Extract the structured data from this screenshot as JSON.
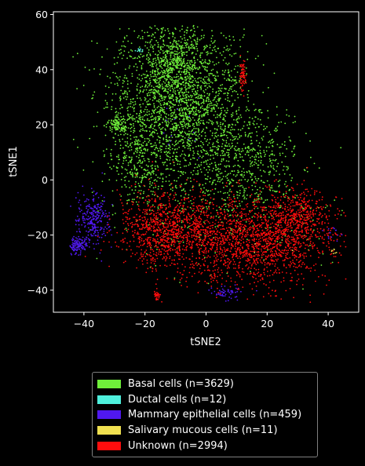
{
  "chart_data": {
    "type": "scatter",
    "title": "",
    "xlabel": "tSNE2",
    "ylabel": "tSNE1",
    "xlim": [
      -50,
      50
    ],
    "ylim": [
      -48,
      61
    ],
    "xticks": [
      -40,
      -20,
      0,
      20,
      40
    ],
    "yticks": [
      -40,
      -20,
      0,
      20,
      40,
      60
    ],
    "xtick_labels": [
      "−40",
      "−20",
      "0",
      "20",
      "40"
    ],
    "ytick_labels": [
      "−40",
      "−20",
      "0",
      "20",
      "40",
      "60"
    ],
    "grid": false,
    "legend_position": "below",
    "series": [
      {
        "name": "Basal cells (n=3629)",
        "n": 3629,
        "color": "#6ff03a",
        "regions": [
          {
            "cx": -9,
            "cy": 28,
            "sx": 11,
            "sy": 14,
            "w": 0.55
          },
          {
            "cx": -10,
            "cy": 43,
            "sx": 5,
            "sy": 7,
            "w": 0.12
          },
          {
            "cx": 12,
            "cy": 8,
            "sx": 9,
            "sy": 10,
            "w": 0.15
          },
          {
            "cx": -22,
            "cy": 8,
            "sx": 5,
            "sy": 8,
            "w": 0.08
          },
          {
            "cx": -29,
            "cy": 20,
            "sx": 1.5,
            "sy": 1.5,
            "w": 0.03
          },
          {
            "cx": 4,
            "cy": -10,
            "sx": 20,
            "sy": 10,
            "w": 0.07
          }
        ]
      },
      {
        "name": "Ductal cells (n=12)",
        "n": 12,
        "color": "#4ef0dc",
        "regions": [
          {
            "cx": -22,
            "cy": 47,
            "sx": 0.7,
            "sy": 0.5,
            "w": 0.85
          },
          {
            "cx": -9,
            "cy": 30,
            "sx": 6,
            "sy": 6,
            "w": 0.15
          }
        ]
      },
      {
        "name": "Mammary epithelial cells (n=459)",
        "n": 459,
        "color": "#5018f0",
        "regions": [
          {
            "cx": -37,
            "cy": -14,
            "sx": 2.5,
            "sy": 5,
            "w": 0.55
          },
          {
            "cx": -42,
            "cy": -24,
            "sx": 1.5,
            "sy": 1.5,
            "w": 0.25
          },
          {
            "cx": 7,
            "cy": -41,
            "sx": 2.5,
            "sy": 1,
            "w": 0.12
          },
          {
            "cx": 42,
            "cy": -19,
            "sx": 1.5,
            "sy": 1.5,
            "w": 0.04
          },
          {
            "cx": -8,
            "cy": 20,
            "sx": 6,
            "sy": 6,
            "w": 0.04
          }
        ]
      },
      {
        "name": "Salivary mucous cells (n=11)",
        "n": 11,
        "color": "#f0e050",
        "regions": [
          {
            "cx": 41,
            "cy": -26,
            "sx": 0.8,
            "sy": 0.8,
            "w": 0.8
          },
          {
            "cx": 20,
            "cy": -25,
            "sx": 8,
            "sy": 5,
            "w": 0.2
          }
        ]
      },
      {
        "name": "Unknown (n=2994)",
        "n": 2994,
        "color": "#ff0d0d",
        "regions": [
          {
            "cx": 15,
            "cy": -22,
            "sx": 13,
            "sy": 8,
            "w": 0.55
          },
          {
            "cx": -13,
            "cy": -18,
            "sx": 8,
            "sy": 6.5,
            "w": 0.3
          },
          {
            "cx": 30,
            "cy": -13,
            "sx": 5,
            "sy": 5,
            "w": 0.12
          },
          {
            "cx": -16,
            "cy": -42,
            "sx": 0.5,
            "sy": 1,
            "w": 0.01
          },
          {
            "cx": 12,
            "cy": 38,
            "sx": 0.5,
            "sy": 3,
            "w": 0.02
          }
        ]
      }
    ]
  }
}
